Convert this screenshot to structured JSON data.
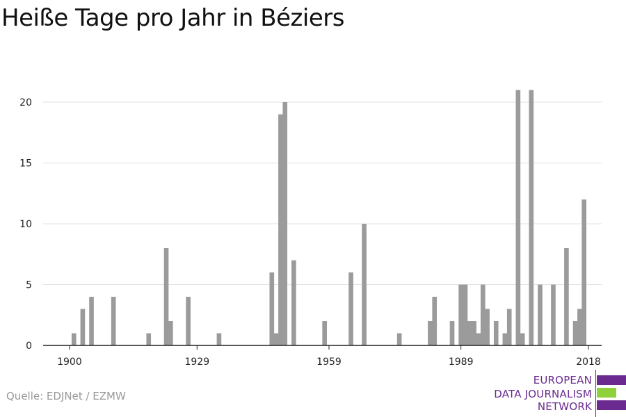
{
  "title": "Heiße Tage pro Jahr in Béziers",
  "source": "Quelle: EDJNet / EZMW",
  "logo": {
    "lines": [
      "EUROPEAN",
      "DATA JOURNALISM",
      "NETWORK"
    ],
    "colors": {
      "purple": "#6a2a8f",
      "green": "#8fd13b"
    }
  },
  "colors": {
    "bar": "#9b9b9b",
    "grid": "#e0e0e0",
    "axis": "#222222"
  },
  "chart_data": {
    "type": "bar",
    "title": "Heiße Tage pro Jahr in Béziers",
    "xlabel": "",
    "ylabel": "",
    "xlim": [
      1894,
      2021
    ],
    "ylim": [
      0,
      22
    ],
    "yticks": [
      0,
      5,
      10,
      15,
      20
    ],
    "xticks": [
      1900,
      1929,
      1959,
      1989,
      2018
    ],
    "grid": true,
    "legend": "none",
    "x": [
      1901,
      1903,
      1905,
      1910,
      1918,
      1922,
      1923,
      1927,
      1934,
      1946,
      1947,
      1948,
      1949,
      1951,
      1958,
      1964,
      1967,
      1975,
      1982,
      1983,
      1987,
      1989,
      1990,
      1991,
      1992,
      1993,
      1994,
      1995,
      1997,
      1999,
      2000,
      2002,
      2003,
      2005,
      2007,
      2010,
      2013,
      2015,
      2016,
      2017,
      2018
    ],
    "values": [
      1,
      3,
      4,
      4,
      1,
      8,
      2,
      4,
      1,
      6,
      1,
      19,
      20,
      7,
      2,
      6,
      10,
      1,
      2,
      4,
      2,
      5,
      5,
      2,
      2,
      1,
      5,
      3,
      2,
      1,
      3,
      21,
      1,
      21,
      5,
      5,
      8,
      2,
      3,
      12,
      0
    ]
  }
}
